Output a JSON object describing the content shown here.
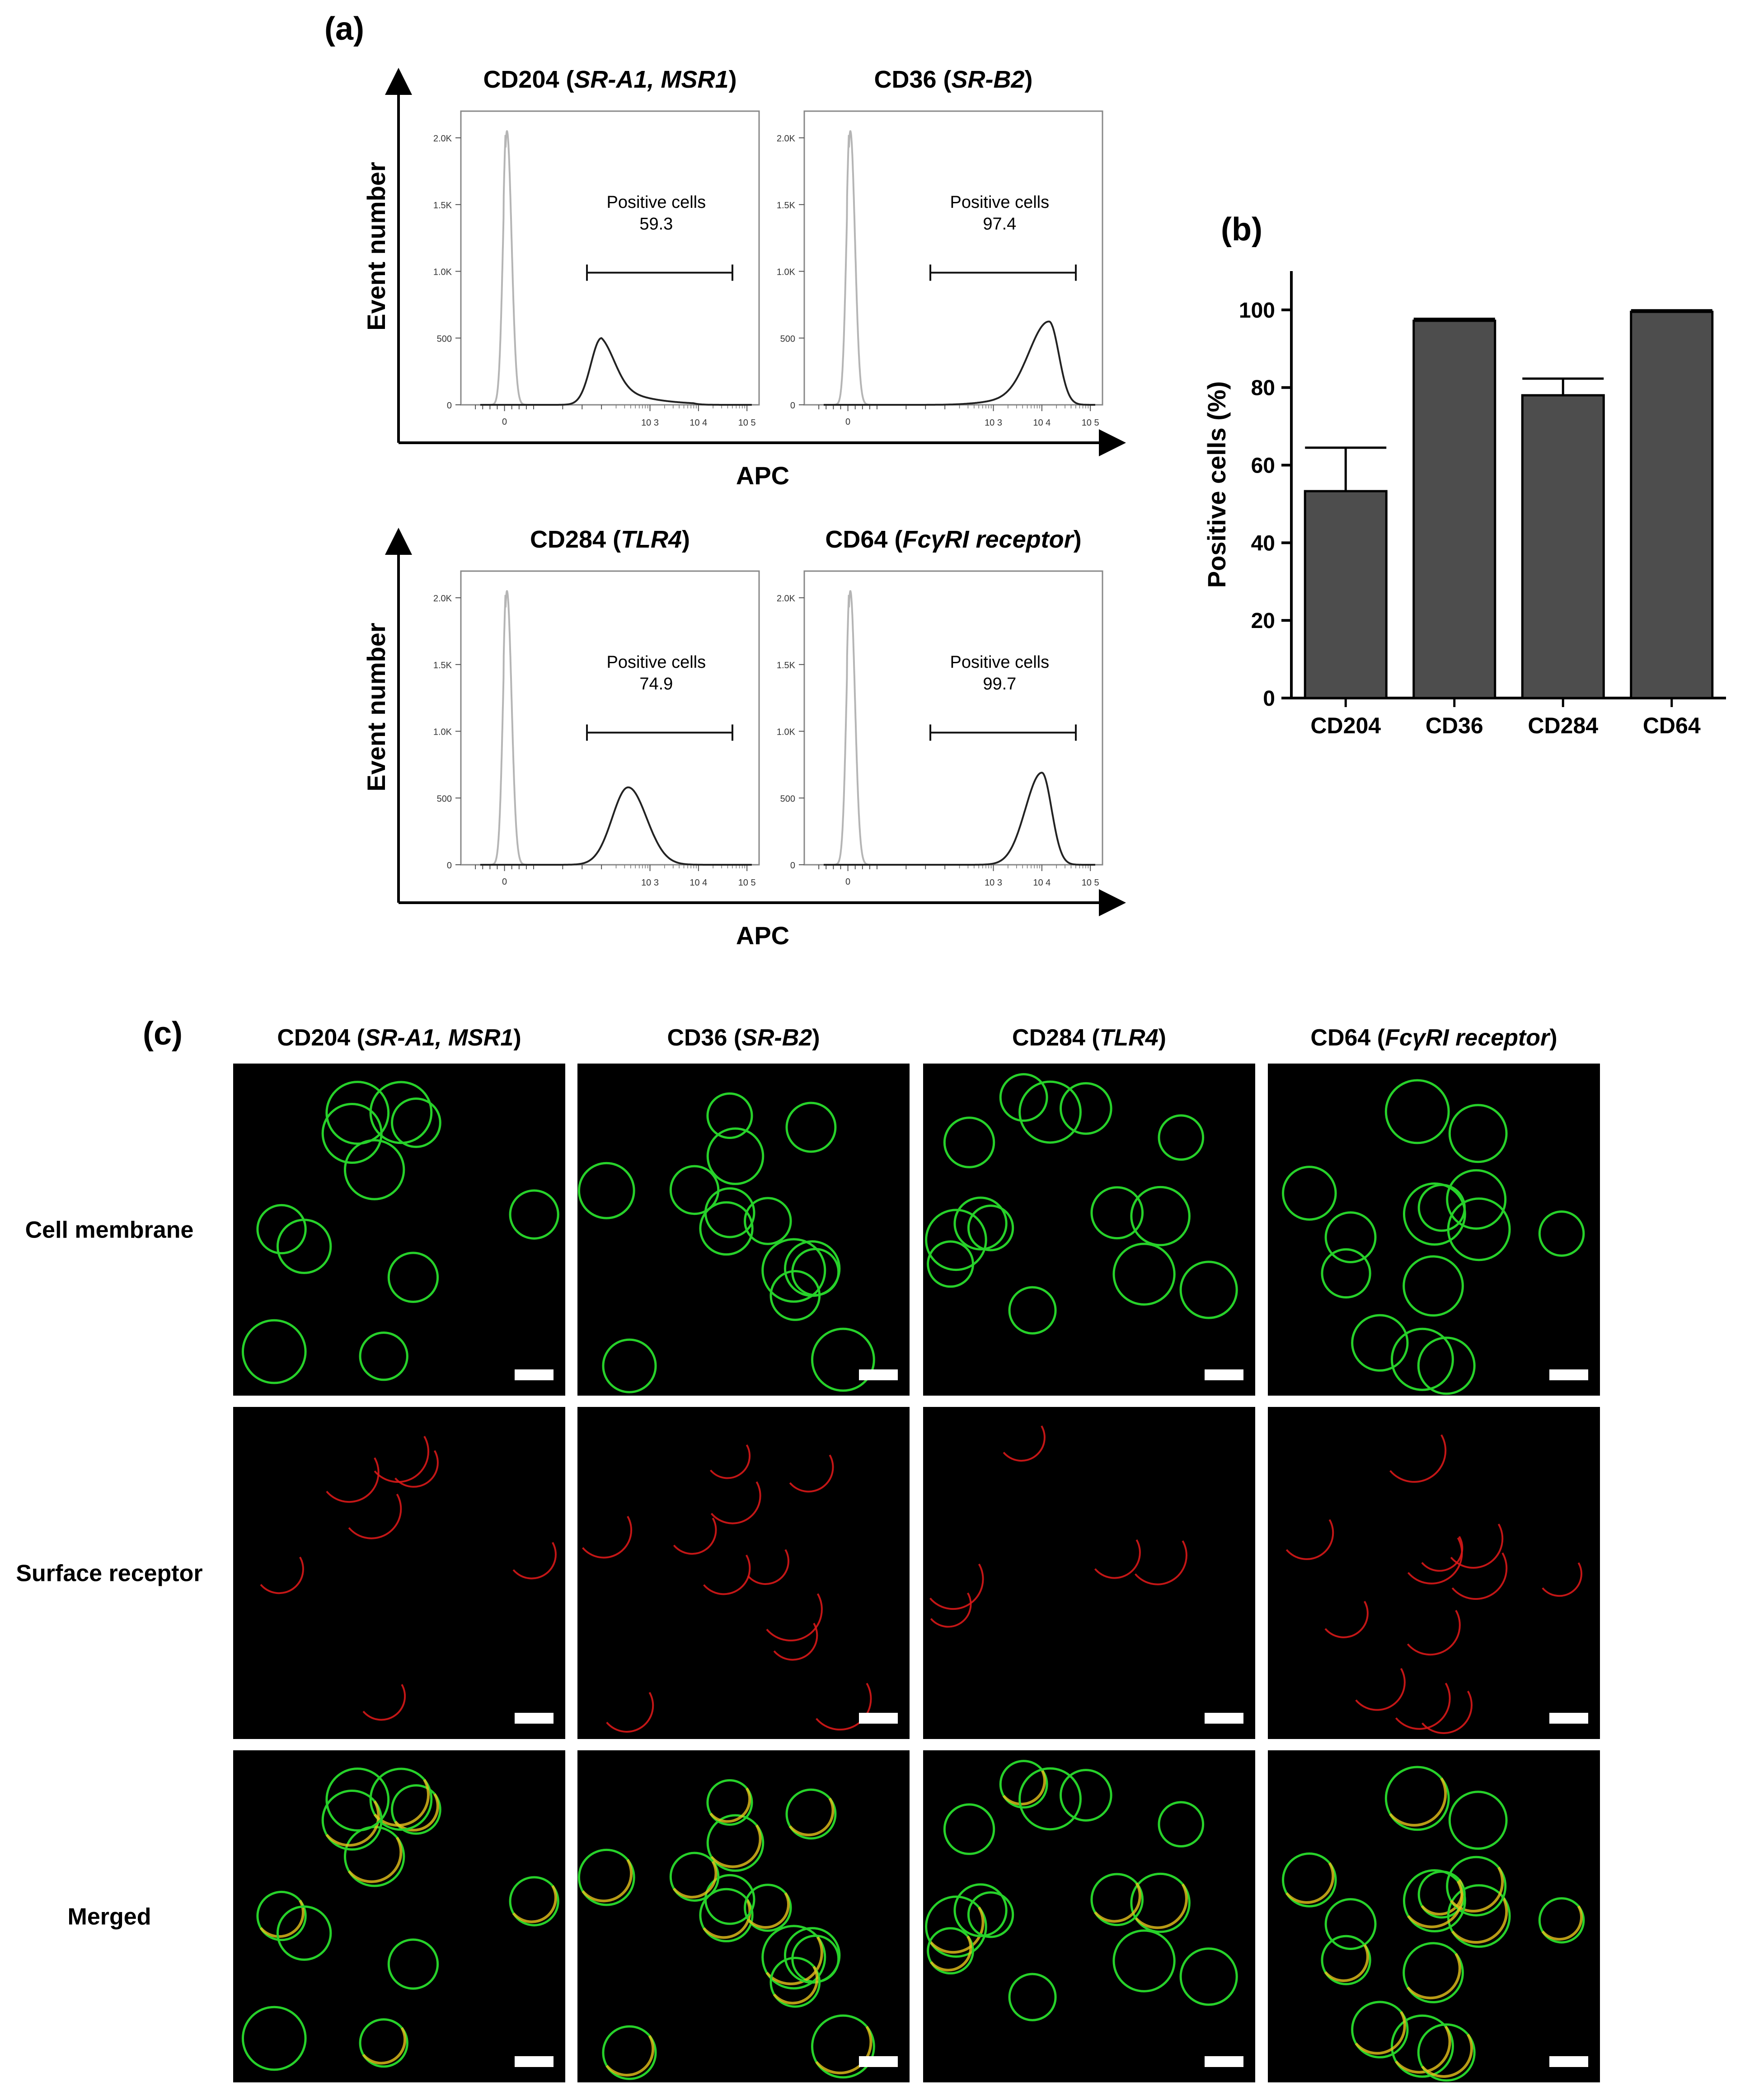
{
  "panel_labels": {
    "a": "(a)",
    "b": "(b)",
    "c": "(c)"
  },
  "chart_data": [
    {
      "type": "histogram",
      "panel": "a",
      "row": 1,
      "y_axis_label": "Event number",
      "x_axis_label": "APC",
      "ylim": [
        0,
        2200
      ],
      "y_ticks": [
        "0",
        "500",
        "1.0K",
        "1.5K",
        "2.0K"
      ],
      "x_ticks": [
        "0",
        "10 3",
        "10 4",
        "10 5"
      ],
      "subplots": [
        {
          "title_plain": "CD204 (",
          "title_italic": "SR-A1, MSR1",
          "title_end": ")",
          "annotation": "Positive cells",
          "value": "59.3",
          "gate_log_range": [
            1.7,
            4.7
          ]
        },
        {
          "title_plain": "CD36 (",
          "title_italic": "SR-B2",
          "title_end": ")",
          "annotation": "Positive cells",
          "value": "97.4",
          "gate_log_range": [
            1.7,
            4.7
          ]
        }
      ]
    },
    {
      "type": "histogram",
      "panel": "a",
      "row": 2,
      "y_axis_label": "Event number",
      "x_axis_label": "APC",
      "ylim": [
        0,
        2200
      ],
      "y_ticks": [
        "0",
        "500",
        "1.0K",
        "1.5K",
        "2.0K"
      ],
      "x_ticks": [
        "0",
        "10 3",
        "10 4",
        "10 5"
      ],
      "subplots": [
        {
          "title_plain": "CD284 (",
          "title_italic": "TLR4",
          "title_end": ")",
          "annotation": "Positive cells",
          "value": "74.9",
          "gate_log_range": [
            1.7,
            4.7
          ]
        },
        {
          "title_plain": "CD64 (",
          "title_italic": "FcγRI receptor",
          "title_end": ")",
          "annotation": "Positive cells",
          "value": "99.7",
          "gate_log_range": [
            1.7,
            4.7
          ]
        }
      ]
    },
    {
      "type": "bar",
      "panel": "b",
      "categories": [
        "CD204",
        "CD36",
        "CD284",
        "CD64"
      ],
      "values": [
        53.3,
        97.2,
        78.0,
        99.5
      ],
      "errors": [
        11.2,
        0.5,
        4.3,
        0.4
      ],
      "ylabel": "Positive cells (%)",
      "ylim": [
        0,
        110
      ],
      "y_ticks": [
        "0",
        "20",
        "40",
        "60",
        "80",
        "100"
      ],
      "bar_color": "#4d4d4d"
    }
  ],
  "microscopy": {
    "columns": [
      {
        "plain": "CD204 (",
        "italic": "SR-A1, MSR1",
        "end": ")"
      },
      {
        "plain": "CD36 (",
        "italic": "SR-B2",
        "end": ")"
      },
      {
        "plain": "CD284 (",
        "italic": "TLR4",
        "end": ")"
      },
      {
        "plain": "CD64 (",
        "italic": "FcγRI receptor",
        "end": ")"
      }
    ],
    "rows": [
      "Cell membrane",
      "Surface receptor",
      "Merged"
    ],
    "channel_colors": {
      "membrane": "#27d12a",
      "receptor": "#d81818"
    }
  }
}
